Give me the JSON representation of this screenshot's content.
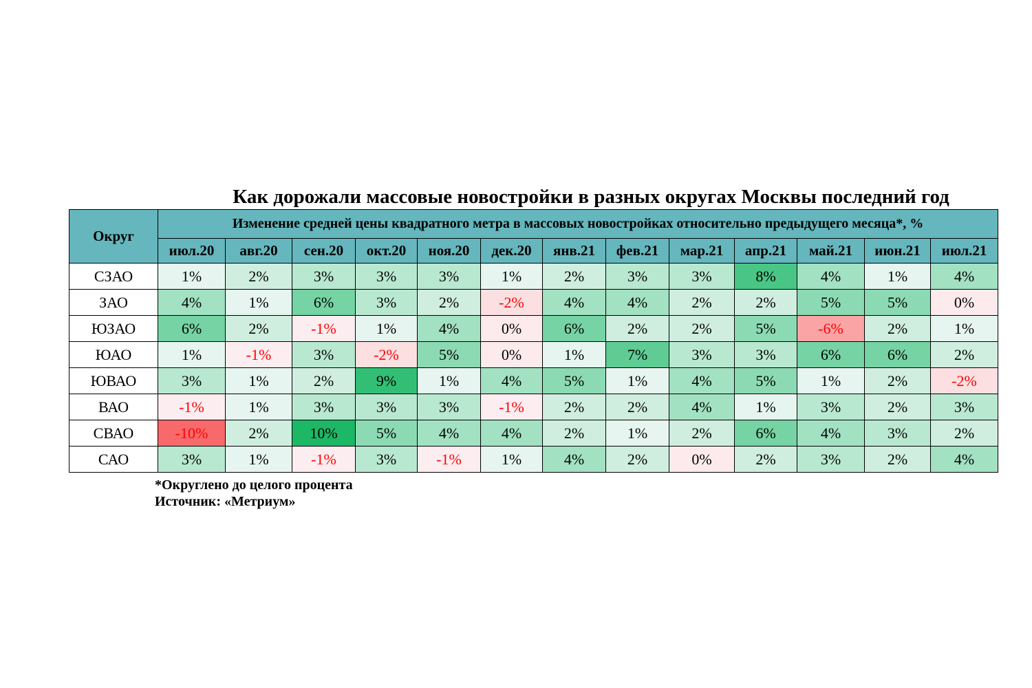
{
  "title": "Как дорожали массовые новостройки в разных округах Москвы последний год",
  "header": {
    "district_label": "Округ",
    "change_label": "Изменение средней цены квадратного метра в массовых новостройках относительно предыдущего месяца*, %"
  },
  "footnotes": {
    "rounding": "*Округлено до целого процента",
    "source": "Источник: «Метриум»"
  },
  "colors": {
    "header_bg": "#65b6bd",
    "positive_max": "#1cb866",
    "negative_max": "#f8696b",
    "neutral": "#fcfcff",
    "negative_text": "#ff0000"
  },
  "chart_data": {
    "type": "heatmap",
    "title": "Как дорожали массовые новостройки в разных округах Москвы последний год",
    "x": [
      "июл.20",
      "авг.20",
      "сен.20",
      "окт.20",
      "ноя.20",
      "дек.20",
      "янв.21",
      "фев.21",
      "мар.21",
      "апр.21",
      "май.21",
      "июн.21",
      "июл.21"
    ],
    "y": [
      "СЗАО",
      "ЗАО",
      "ЮЗАО",
      "ЮАО",
      "ЮВАО",
      "ВАО",
      "СВАО",
      "САО"
    ],
    "unit": "%",
    "values": [
      [
        1,
        2,
        3,
        3,
        3,
        1,
        2,
        3,
        3,
        8,
        4,
        1,
        4
      ],
      [
        4,
        1,
        6,
        3,
        2,
        -2,
        4,
        4,
        2,
        2,
        5,
        5,
        0
      ],
      [
        6,
        2,
        -1,
        1,
        4,
        0,
        6,
        2,
        2,
        5,
        -6,
        2,
        1
      ],
      [
        1,
        -1,
        3,
        -2,
        5,
        0,
        1,
        7,
        3,
        3,
        6,
        6,
        2
      ],
      [
        3,
        1,
        2,
        9,
        1,
        4,
        5,
        1,
        4,
        5,
        1,
        2,
        -2
      ],
      [
        -1,
        1,
        3,
        3,
        3,
        -1,
        2,
        2,
        4,
        1,
        3,
        2,
        3
      ],
      [
        -10,
        2,
        10,
        5,
        4,
        4,
        2,
        1,
        2,
        6,
        4,
        3,
        2
      ],
      [
        3,
        1,
        -1,
        3,
        -1,
        1,
        4,
        2,
        0,
        2,
        3,
        2,
        4
      ]
    ],
    "display": [
      [
        "1%",
        "2%",
        "3%",
        "3%",
        "3%",
        "1%",
        "2%",
        "3%",
        "3%",
        "8%",
        "4%",
        "1%",
        "4%"
      ],
      [
        "4%",
        "1%",
        "6%",
        "3%",
        "2%",
        "-2%",
        "4%",
        "4%",
        "2%",
        "2%",
        "5%",
        "5%",
        "0%"
      ],
      [
        "6%",
        "2%",
        "-1%",
        "1%",
        "4%",
        "0%",
        "6%",
        "2%",
        "2%",
        "5%",
        "-6%",
        "2%",
        "1%"
      ],
      [
        "1%",
        "-1%",
        "3%",
        "-2%",
        "5%",
        "0%",
        "1%",
        "7%",
        "3%",
        "3%",
        "6%",
        "6%",
        "2%"
      ],
      [
        "3%",
        "1%",
        "2%",
        "9%",
        "1%",
        "4%",
        "5%",
        "1%",
        "4%",
        "5%",
        "1%",
        "2%",
        "-2%"
      ],
      [
        "-1%",
        "1%",
        "3%",
        "3%",
        "3%",
        "-1%",
        "2%",
        "2%",
        "4%",
        "1%",
        "3%",
        "2%",
        "3%"
      ],
      [
        "-10%",
        "2%",
        "10%",
        "5%",
        "4%",
        "4%",
        "2%",
        "1%",
        "2%",
        "6%",
        "4%",
        "3%",
        "2%"
      ],
      [
        "3%",
        "1%",
        "-1%",
        "3%",
        "-1%",
        "1%",
        "4%",
        "2%",
        "0%",
        "2%",
        "3%",
        "2%",
        "4%"
      ]
    ]
  }
}
